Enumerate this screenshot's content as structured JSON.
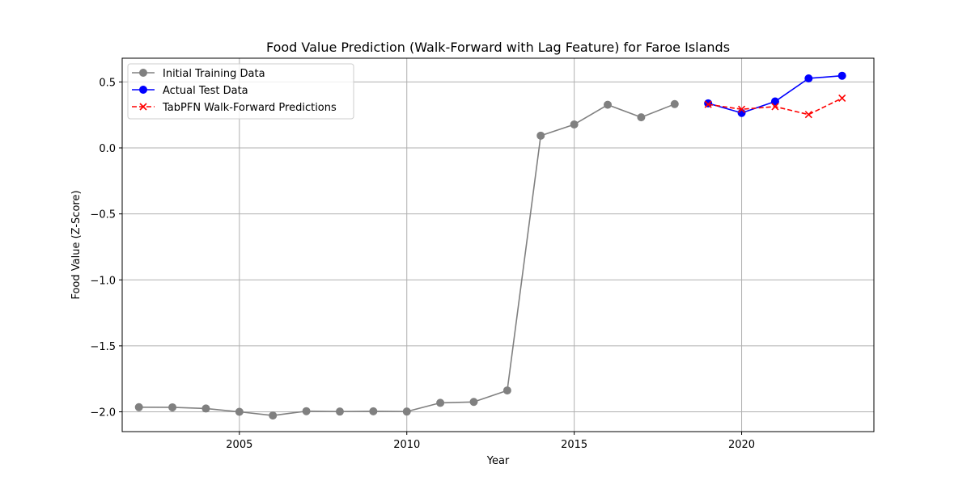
{
  "chart_data": {
    "type": "line",
    "title": "Food Value Prediction (Walk-Forward with Lag Feature) for Faroe Islands",
    "xlabel": "Year",
    "ylabel": "Food Value (Z-Score)",
    "xlim": [
      2001.5,
      2023.95
    ],
    "ylim": [
      -2.15,
      0.68
    ],
    "x_ticks": [
      2005,
      2010,
      2015,
      2020
    ],
    "x_tick_labels": [
      "2005",
      "2010",
      "2015",
      "2020"
    ],
    "y_ticks": [
      0.5,
      0.0,
      -0.5,
      -1.0,
      -1.5,
      -2.0
    ],
    "y_tick_labels": [
      "0.5",
      "0.0",
      "−0.5",
      "−1.0",
      "−1.5",
      "−2.0"
    ],
    "grid": true,
    "legend_position": "upper-left",
    "series": [
      {
        "name": "Initial Training Data",
        "color": "#808080",
        "marker": "circle",
        "line_style": "solid",
        "x": [
          2002,
          2003,
          2004,
          2005,
          2006,
          2007,
          2008,
          2009,
          2010,
          2011,
          2012,
          2013,
          2014,
          2015,
          2016,
          2017,
          2018
        ],
        "y": [
          -1.965,
          -1.966,
          -1.975,
          -2.0,
          -2.028,
          -1.995,
          -1.998,
          -1.996,
          -1.998,
          -1.932,
          -1.925,
          -1.838,
          0.093,
          0.178,
          0.327,
          0.232,
          0.332
        ]
      },
      {
        "name": "Actual Test Data",
        "color": "#0000ff",
        "marker": "circle",
        "line_style": "solid",
        "x": [
          2019,
          2020,
          2021,
          2022,
          2023
        ],
        "y": [
          0.338,
          0.265,
          0.352,
          0.527,
          0.547
        ]
      },
      {
        "name": "TabPFN Walk-Forward Predictions",
        "color": "#ff0000",
        "marker": "x",
        "line_style": "dashed",
        "x": [
          2019,
          2020,
          2021,
          2022,
          2023
        ],
        "y": [
          0.33,
          0.293,
          0.313,
          0.253,
          0.377
        ]
      }
    ]
  }
}
